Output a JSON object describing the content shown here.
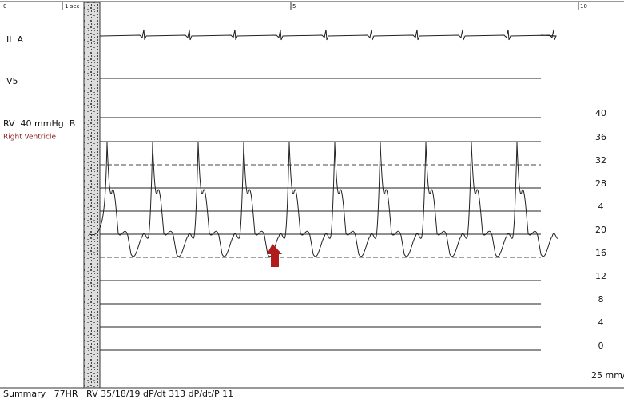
{
  "timeline": {
    "labels": [
      "0",
      "1 sec",
      "5",
      "10"
    ]
  },
  "channels": [
    {
      "label": "II  A"
    },
    {
      "label": "V5"
    },
    {
      "label": "RV  40 mmHg  B",
      "sublabel": "Right Ventricle"
    }
  ],
  "scale": {
    "labels": [
      "40",
      "36",
      "32",
      "28",
      "4",
      "20",
      "16",
      "12",
      "8",
      "4",
      "0"
    ]
  },
  "speed": "25 mm/s",
  "summary": "Summary   77HR   RV 35/18/19 dP/dt 313 dP/dt/P 11"
}
